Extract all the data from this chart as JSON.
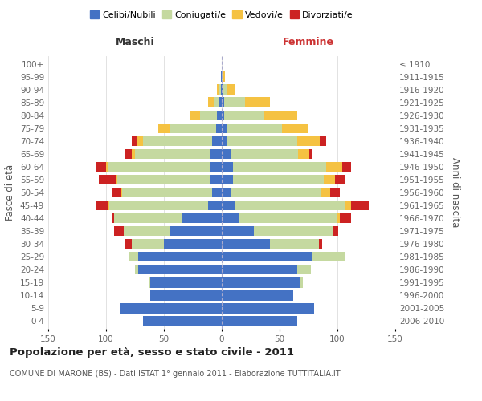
{
  "age_groups": [
    "0-4",
    "5-9",
    "10-14",
    "15-19",
    "20-24",
    "25-29",
    "30-34",
    "35-39",
    "40-44",
    "45-49",
    "50-54",
    "55-59",
    "60-64",
    "65-69",
    "70-74",
    "75-79",
    "80-84",
    "85-89",
    "90-94",
    "95-99",
    "100+"
  ],
  "birth_years": [
    "2006-2010",
    "2001-2005",
    "1996-2000",
    "1991-1995",
    "1986-1990",
    "1981-1985",
    "1976-1980",
    "1971-1975",
    "1966-1970",
    "1961-1965",
    "1956-1960",
    "1951-1955",
    "1946-1950",
    "1941-1945",
    "1936-1940",
    "1931-1935",
    "1926-1930",
    "1921-1925",
    "1916-1920",
    "1911-1915",
    "≤ 1910"
  ],
  "colors": {
    "celibi": "#4472c4",
    "coniugati": "#c5d9a0",
    "vedovi": "#f5c242",
    "divorziati": "#cc2222"
  },
  "maschi": {
    "celibi": [
      68,
      88,
      62,
      62,
      72,
      72,
      50,
      45,
      35,
      12,
      8,
      10,
      10,
      10,
      8,
      5,
      4,
      2,
      1,
      1,
      0
    ],
    "coniugati": [
      0,
      0,
      0,
      1,
      3,
      8,
      28,
      40,
      58,
      85,
      78,
      80,
      88,
      65,
      60,
      40,
      15,
      5,
      2,
      0,
      0
    ],
    "vedovi": [
      0,
      0,
      0,
      0,
      0,
      0,
      0,
      0,
      0,
      1,
      1,
      1,
      2,
      3,
      5,
      10,
      8,
      5,
      1,
      0,
      0
    ],
    "divorziati": [
      0,
      0,
      0,
      0,
      0,
      0,
      5,
      8,
      2,
      10,
      8,
      15,
      8,
      5,
      5,
      0,
      0,
      0,
      0,
      0,
      0
    ]
  },
  "femmine": {
    "celibi": [
      65,
      80,
      62,
      68,
      65,
      78,
      42,
      28,
      15,
      12,
      8,
      10,
      10,
      8,
      5,
      4,
      2,
      2,
      1,
      0,
      0
    ],
    "coniugati": [
      0,
      0,
      0,
      2,
      12,
      28,
      42,
      68,
      85,
      95,
      78,
      78,
      80,
      58,
      60,
      48,
      35,
      18,
      4,
      1,
      0
    ],
    "vedovi": [
      0,
      0,
      0,
      0,
      0,
      0,
      0,
      0,
      2,
      5,
      8,
      10,
      14,
      10,
      20,
      22,
      28,
      22,
      6,
      2,
      0
    ],
    "divorziati": [
      0,
      0,
      0,
      0,
      0,
      0,
      3,
      5,
      10,
      15,
      8,
      8,
      8,
      2,
      5,
      0,
      0,
      0,
      0,
      0,
      0
    ]
  },
  "xlim": 150,
  "title": "Popolazione per età, sesso e stato civile - 2011",
  "subtitle": "COMUNE DI MARONE (BS) - Dati ISTAT 1° gennaio 2011 - Elaborazione TUTTITALIA.IT",
  "ylabel": "Fasce di età",
  "ylabel2": "Anni di nascita",
  "xlabel_left": "Maschi",
  "xlabel_right": "Femmine",
  "legend_labels": [
    "Celibi/Nubili",
    "Coniugati/e",
    "Vedovi/e",
    "Divorziati/e"
  ],
  "bg_color": "#ffffff",
  "grid_color": "#dddddd",
  "tick_color": "#666666",
  "label_color": "#555555",
  "maschi_color": "#333333",
  "femmine_color": "#cc3333"
}
